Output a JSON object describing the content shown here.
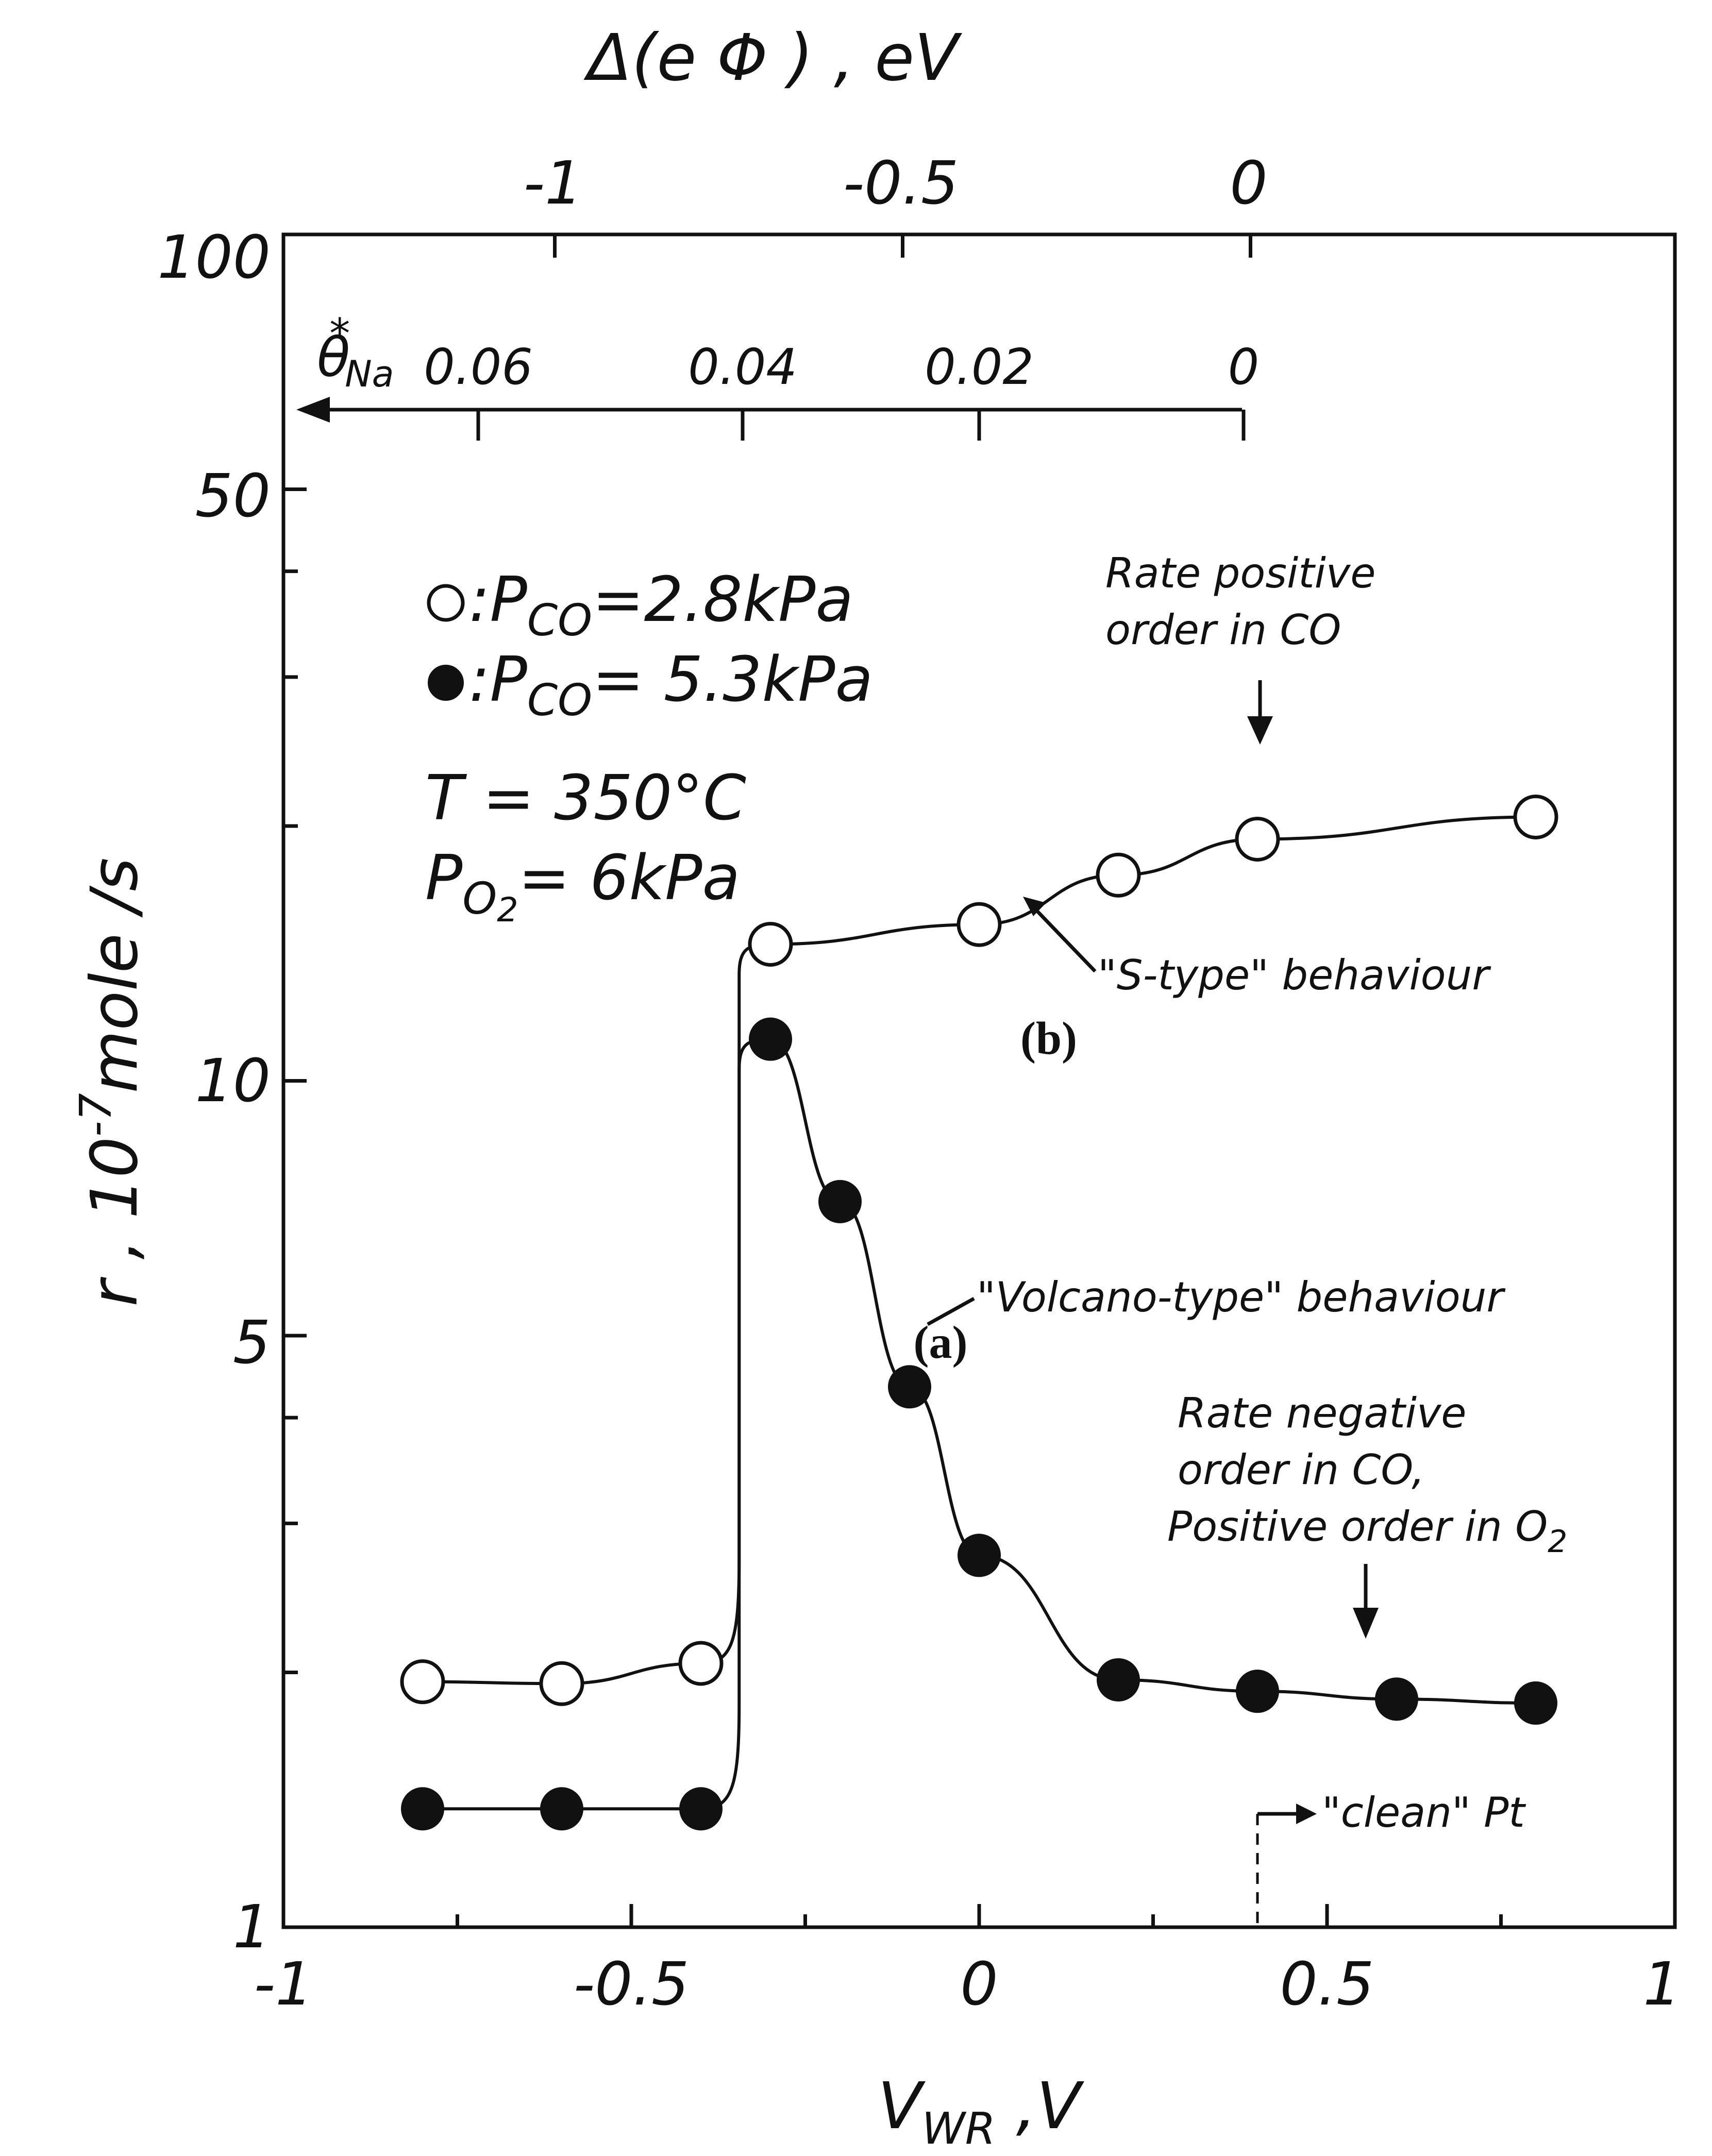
{
  "chart_data": {
    "type": "scatter",
    "xlabel": "V",
    "xlabel_sub": "WR",
    "xlabel_unit": " ,V",
    "ylabel": "r , 10",
    "ylabel_exp": "-7",
    "ylabel_unit": "mole /s",
    "xlim": [
      -1,
      1
    ],
    "ylim": [
      1,
      100
    ],
    "yscale": "log",
    "x_ticks": [
      -1,
      -0.5,
      0,
      0.5,
      1
    ],
    "x_tick_labels": [
      "-1",
      "-0.5",
      "0",
      "0.5",
      "1"
    ],
    "y_tick_labels": [
      {
        "value": 1,
        "label": "1"
      },
      {
        "value": 5,
        "label": "5"
      },
      {
        "value": 10,
        "label": "10"
      },
      {
        "value": 50,
        "label": "50"
      },
      {
        "value": 100,
        "label": "100"
      }
    ],
    "y_minor_ticks": [
      2,
      3,
      4,
      20,
      30,
      40
    ],
    "top_axis": {
      "label": "Δ(e Φ ) , eV",
      "ticks": [
        {
          "v_wr": -0.61,
          "label": "-1"
        },
        {
          "v_wr": -0.11,
          "label": "-0.5"
        },
        {
          "v_wr": 0.39,
          "label": "0"
        }
      ]
    },
    "theta_axis": {
      "symbol": "θ",
      "symbol_sup": "*",
      "symbol_sub": "Na",
      "ticks": [
        {
          "v_wr": -0.72,
          "label": "0.06"
        },
        {
          "v_wr": -0.34,
          "label": "0.04"
        },
        {
          "v_wr": 0.0,
          "label": "0.02"
        },
        {
          "v_wr": 0.38,
          "label": "0"
        }
      ]
    },
    "series": [
      {
        "name": "P_CO = 2.8kPa",
        "marker": "open-circle",
        "x": [
          -0.8,
          -0.6,
          -0.4,
          -0.3,
          0.0,
          0.2,
          0.4,
          0.8
        ],
        "y": [
          1.95,
          1.94,
          2.05,
          14.5,
          15.3,
          17.5,
          19.3,
          20.5
        ]
      },
      {
        "name": "P_CO = 5.3kPa",
        "marker": "filled-circle",
        "x": [
          -0.8,
          -0.6,
          -0.4,
          -0.3,
          -0.2,
          -0.1,
          0.0,
          0.2,
          0.4,
          0.6,
          0.8
        ],
        "y": [
          1.38,
          1.38,
          1.38,
          11.2,
          7.2,
          4.35,
          2.75,
          1.96,
          1.9,
          1.86,
          1.84
        ]
      }
    ],
    "legend": {
      "open_label": "P",
      "open_sub": "CO",
      "open_value": "=2.8kPa",
      "filled_label": "P",
      "filled_sub": "CO",
      "filled_value": "= 5.3kPa",
      "temperature": "T = 350°C",
      "o2_label": "P",
      "o2_sub": "O",
      "o2_sub2": "2",
      "o2_value": "= 6kPa"
    },
    "annotations": {
      "rate_positive_line1": "Rate positive",
      "rate_positive_line2": "order in CO",
      "s_type": "\"S-type\" behaviour",
      "b_label": "(b)",
      "volcano": "\"Volcano-type\" behaviour",
      "a_label": "(a)",
      "rate_negative_line1": "Rate negative",
      "rate_negative_line2": "order in CO,",
      "rate_negative_line3": "Positive order in O",
      "rate_negative_sub": "2",
      "clean_pt": "\"clean\" Pt"
    }
  }
}
